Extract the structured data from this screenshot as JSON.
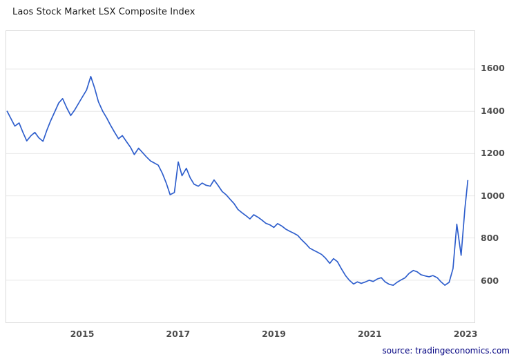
{
  "source": "source: tradingeconomics.com",
  "chart_data": {
    "type": "line",
    "title": "Laos Stock Market LSX Composite Index",
    "series_name": "LSX Composite Index",
    "line_color": "#2e5ecc",
    "grid_color": "#e9e9e9",
    "axis_label_color": "#4d4d4d",
    "legend": "off",
    "grid": "horizontal-only",
    "y_axis_position": "right",
    "xlim": [
      2013.4,
      2023.2
    ],
    "ylim": [
      400,
      1780
    ],
    "yticks": [
      600,
      800,
      1000,
      1200,
      1400,
      1600
    ],
    "xticks": [
      2015,
      2017,
      2019,
      2021,
      2023
    ],
    "x": [
      2013.42,
      2013.5,
      2013.58,
      2013.67,
      2013.75,
      2013.83,
      2013.92,
      2014.0,
      2014.08,
      2014.17,
      2014.25,
      2014.33,
      2014.42,
      2014.5,
      2014.58,
      2014.67,
      2014.75,
      2014.83,
      2014.92,
      2015.0,
      2015.08,
      2015.17,
      2015.25,
      2015.33,
      2015.42,
      2015.5,
      2015.58,
      2015.67,
      2015.75,
      2015.83,
      2015.92,
      2016.0,
      2016.08,
      2016.17,
      2016.25,
      2016.33,
      2016.42,
      2016.5,
      2016.58,
      2016.67,
      2016.75,
      2016.83,
      2016.92,
      2017.0,
      2017.08,
      2017.17,
      2017.25,
      2017.33,
      2017.42,
      2017.5,
      2017.58,
      2017.67,
      2017.75,
      2017.83,
      2017.92,
      2018.0,
      2018.08,
      2018.17,
      2018.25,
      2018.33,
      2018.42,
      2018.5,
      2018.58,
      2018.67,
      2018.75,
      2018.83,
      2018.92,
      2019.0,
      2019.08,
      2019.17,
      2019.25,
      2019.33,
      2019.42,
      2019.5,
      2019.58,
      2019.67,
      2019.75,
      2019.83,
      2019.92,
      2020.0,
      2020.08,
      2020.17,
      2020.25,
      2020.33,
      2020.42,
      2020.5,
      2020.58,
      2020.67,
      2020.75,
      2020.83,
      2020.92,
      2021.0,
      2021.08,
      2021.17,
      2021.25,
      2021.33,
      2021.42,
      2021.5,
      2021.58,
      2021.67,
      2021.75,
      2021.83,
      2021.92,
      2022.0,
      2022.08,
      2022.17,
      2022.25,
      2022.33,
      2022.42,
      2022.5,
      2022.58,
      2022.67,
      2022.75,
      2022.83,
      2022.92,
      2023.0,
      2023.06
    ],
    "y": [
      1400,
      1365,
      1330,
      1345,
      1300,
      1260,
      1285,
      1300,
      1275,
      1258,
      1310,
      1355,
      1400,
      1440,
      1460,
      1415,
      1380,
      1405,
      1440,
      1470,
      1500,
      1565,
      1510,
      1445,
      1400,
      1370,
      1335,
      1300,
      1270,
      1285,
      1255,
      1230,
      1195,
      1225,
      1205,
      1185,
      1165,
      1155,
      1145,
      1105,
      1060,
      1005,
      1015,
      1160,
      1095,
      1130,
      1085,
      1055,
      1045,
      1060,
      1050,
      1045,
      1075,
      1050,
      1020,
      1005,
      985,
      962,
      935,
      920,
      905,
      890,
      910,
      898,
      885,
      870,
      862,
      850,
      868,
      856,
      842,
      832,
      822,
      812,
      792,
      772,
      752,
      742,
      732,
      722,
      705,
      680,
      702,
      688,
      652,
      622,
      600,
      582,
      592,
      585,
      592,
      600,
      594,
      606,
      612,
      592,
      580,
      576,
      590,
      602,
      612,
      632,
      646,
      640,
      626,
      620,
      616,
      622,
      612,
      592,
      576,
      590,
      655,
      865,
      718,
      940,
      1072
    ]
  }
}
